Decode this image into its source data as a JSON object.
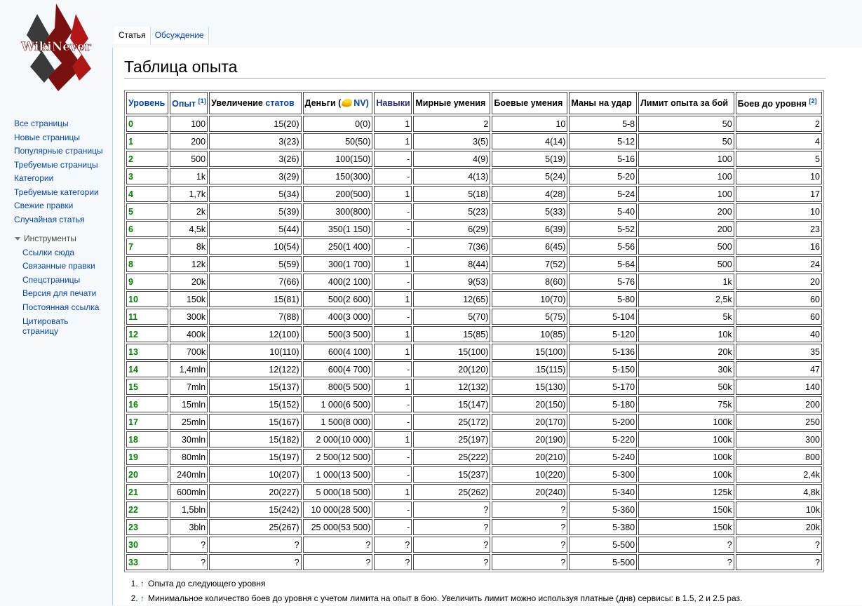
{
  "logo": {
    "text": "WikiNever"
  },
  "sidebar": {
    "links": [
      "Все страницы",
      "Новые страницы",
      "Популярные страницы",
      "Требуемые страницы",
      "Категории",
      "Требуемые категории",
      "Свежие правки",
      "Случайная статья"
    ],
    "tools_title": "Инструменты",
    "tools": [
      "Ссылки сюда",
      "Связанные правки",
      "Спецстраницы",
      "Версия для печати",
      "Постоянная ссылка",
      "Цитировать страницу"
    ]
  },
  "tabs": [
    "Статья",
    "Обсуждение"
  ],
  "header": {
    "title": "Таблица опыта"
  },
  "table": {
    "headers": [
      {
        "text": "Уровень"
      },
      {
        "text": "Опыт",
        "sup": "[1]"
      },
      {
        "text": "Увеличение",
        "link": "статов"
      },
      {
        "text": "Деньги (",
        "link": "NV)"
      },
      {
        "text": "Навыки"
      },
      {
        "text": "Мирные умения"
      },
      {
        "text": "Боевые умения"
      },
      {
        "text": "Маны на удар"
      },
      {
        "text": "Лимит опыта за бой"
      },
      {
        "text": "Боев до уровня",
        "sup": "[2]"
      }
    ],
    "rows": [
      [
        "0",
        "100",
        "15(20)",
        "0(0)",
        "1",
        "2",
        "10",
        "5-8",
        "50",
        "2"
      ],
      [
        "1",
        "200",
        "3(23)",
        "50(50)",
        "1",
        "3(5)",
        "4(14)",
        "5-12",
        "50",
        "4"
      ],
      [
        "2",
        "500",
        "3(26)",
        "100(150)",
        "-",
        "4(9)",
        "5(19)",
        "5-16",
        "100",
        "5"
      ],
      [
        "3",
        "1k",
        "3(29)",
        "150(300)",
        "-",
        "4(13)",
        "5(24)",
        "5-20",
        "100",
        "10"
      ],
      [
        "4",
        "1,7k",
        "5(34)",
        "200(500)",
        "1",
        "5(18)",
        "4(28)",
        "5-24",
        "100",
        "17"
      ],
      [
        "5",
        "2k",
        "5(39)",
        "300(800)",
        "-",
        "5(23)",
        "5(33)",
        "5-40",
        "200",
        "10"
      ],
      [
        "6",
        "4,5k",
        "5(44)",
        "350(1 150)",
        "-",
        "6(29)",
        "6(39)",
        "5-52",
        "200",
        "23"
      ],
      [
        "7",
        "8k",
        "10(54)",
        "250(1 400)",
        "-",
        "7(36)",
        "6(45)",
        "5-56",
        "500",
        "16"
      ],
      [
        "8",
        "12k",
        "5(59)",
        "300(1 700)",
        "1",
        "8(44)",
        "7(52)",
        "5-64",
        "500",
        "24"
      ],
      [
        "9",
        "20k",
        "7(66)",
        "400(2 100)",
        "-",
        "9(53)",
        "8(60)",
        "5-76",
        "1k",
        "20"
      ],
      [
        "10",
        "150k",
        "15(81)",
        "500(2 600)",
        "1",
        "12(65)",
        "10(70)",
        "5-80",
        "2,5k",
        "60"
      ],
      [
        "11",
        "300k",
        "7(88)",
        "400(3 000)",
        "-",
        "5(70)",
        "5(75)",
        "5-104",
        "5k",
        "60"
      ],
      [
        "12",
        "400k",
        "12(100)",
        "500(3 500)",
        "1",
        "15(85)",
        "10(85)",
        "5-120",
        "10k",
        "40"
      ],
      [
        "13",
        "700k",
        "10(110)",
        "600(4 100)",
        "1",
        "15(100)",
        "15(100)",
        "5-136",
        "20k",
        "35"
      ],
      [
        "14",
        "1,4mln",
        "12(122)",
        "600(4 700)",
        "-",
        "20(120)",
        "15(115)",
        "5-150",
        "30k",
        "47"
      ],
      [
        "15",
        "7mln",
        "15(137)",
        "800(5 500)",
        "1",
        "12(132)",
        "15(130)",
        "5-170",
        "50k",
        "140"
      ],
      [
        "16",
        "15mln",
        "15(152)",
        "1 000(6 500)",
        "-",
        "15(147)",
        "20(150)",
        "5-180",
        "75k",
        "200"
      ],
      [
        "17",
        "25mln",
        "15(167)",
        "1 500(8 000)",
        "-",
        "25(172)",
        "20(170)",
        "5-200",
        "100k",
        "250"
      ],
      [
        "18",
        "30mln",
        "15(182)",
        "2 000(10 000)",
        "1",
        "25(197)",
        "20(190)",
        "5-220",
        "100k",
        "300"
      ],
      [
        "19",
        "80mln",
        "15(197)",
        "2 500(12 500)",
        "-",
        "25(222)",
        "20(210)",
        "5-240",
        "100k",
        "800"
      ],
      [
        "20",
        "240mln",
        "10(207)",
        "1 000(13 500)",
        "-",
        "15(237)",
        "10(220)",
        "5-300",
        "100k",
        "2,4k"
      ],
      [
        "21",
        "600mln",
        "20(227)",
        "5 000(18 500)",
        "1",
        "25(262)",
        "20(240)",
        "5-340",
        "125k",
        "4,8k"
      ],
      [
        "22",
        "1,5bln",
        "15(242)",
        "10 000(28 500)",
        "-",
        "?",
        "?",
        "5-360",
        "150k",
        "10k"
      ],
      [
        "23",
        "3bln",
        "25(267)",
        "25 000(53 500)",
        "-",
        "?",
        "?",
        "5-380",
        "150k",
        "20k"
      ],
      [
        "30",
        "?",
        "?",
        "?",
        "?",
        "?",
        "?",
        "5-500",
        "?",
        "?"
      ],
      [
        "33",
        "?",
        "?",
        "?",
        "?",
        "?",
        "?",
        "5-500",
        "?",
        "?"
      ]
    ]
  },
  "footnotes": [
    {
      "arrow": "↑",
      "text": "Опыта до следующего уровня"
    },
    {
      "arrow": "↑",
      "text": "Минимальное количество боев до уровня с учетом лимита на опыт в бою. Увеличить лимит можно используя платные (днв) сервисы: в 1.5, 2 и 2.5 раз."
    }
  ]
}
